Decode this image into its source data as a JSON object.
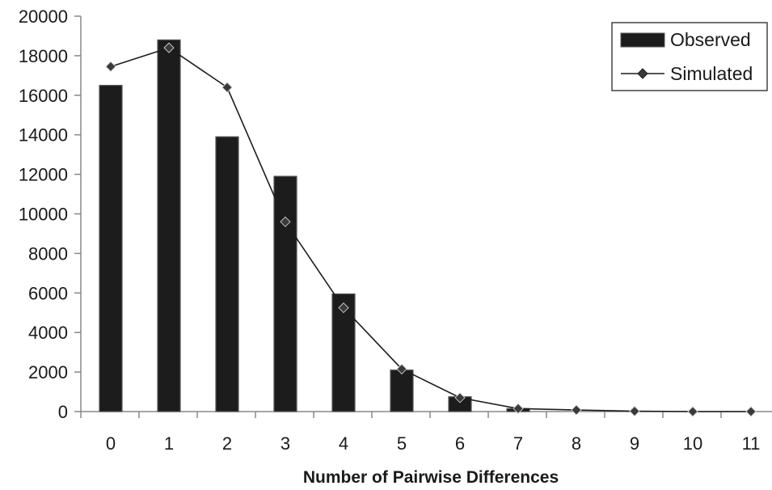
{
  "chart_data": {
    "type": "bar",
    "title": "",
    "xlabel": "Number of Pairwise Differences",
    "ylabel": "",
    "categories": [
      "0",
      "1",
      "2",
      "3",
      "4",
      "5",
      "6",
      "7",
      "8",
      "9",
      "10",
      "11"
    ],
    "series": [
      {
        "name": "Observed",
        "type": "bar",
        "color": "#1c1c1c",
        "values": [
          16500,
          18800,
          13900,
          11900,
          5950,
          2100,
          750,
          150,
          0,
          0,
          0,
          0
        ]
      },
      {
        "name": "Simulated",
        "type": "line",
        "marker": "diamond",
        "color": "#1c1c1c",
        "values": [
          17450,
          18400,
          16400,
          9600,
          5250,
          2150,
          700,
          150,
          80,
          20,
          0,
          0
        ]
      }
    ],
    "ylim": [
      0,
      20000
    ],
    "yticks": [
      "0",
      "2000",
      "4000",
      "6000",
      "8000",
      "10000",
      "12000",
      "14000",
      "16000",
      "18000",
      "20000"
    ],
    "grid": false,
    "legend_position": "top-right"
  }
}
